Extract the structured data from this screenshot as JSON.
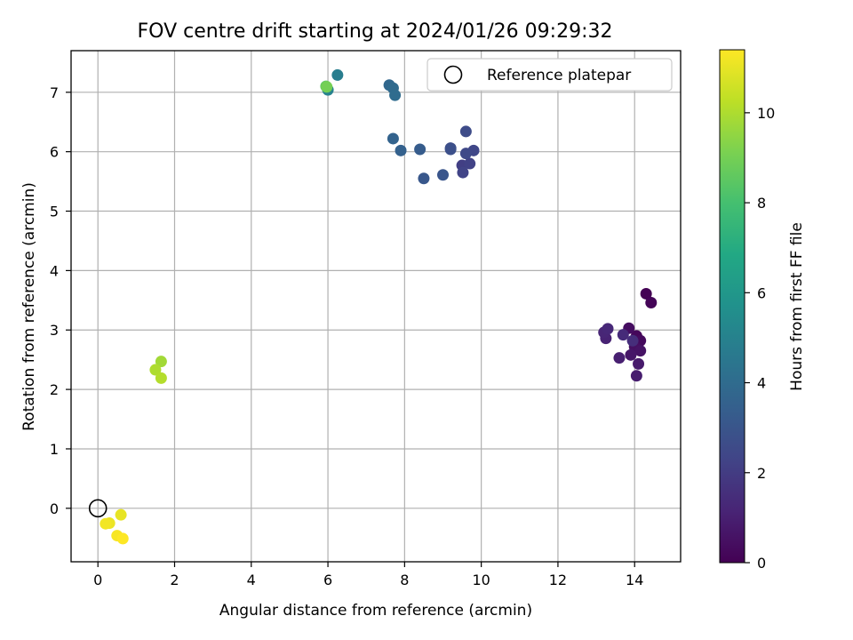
{
  "chart_data": {
    "type": "scatter",
    "title": "FOV centre drift starting at 2024/01/26 09:29:32",
    "xlabel": "Angular distance from reference (arcmin)",
    "ylabel": "Rotation from reference (arcmin)",
    "xlim": [
      -0.7,
      15.2
    ],
    "ylim": [
      -0.9,
      7.7
    ],
    "xticks": [
      0,
      2,
      4,
      6,
      8,
      10,
      12,
      14
    ],
    "yticks": [
      0,
      1,
      2,
      3,
      4,
      5,
      6,
      7
    ],
    "grid": true,
    "legend": {
      "placement": "top-right",
      "entries": [
        "Reference platepar"
      ]
    },
    "reference_point": {
      "x": 0,
      "y": 0
    },
    "colorbar": {
      "label": "Hours from first FF file",
      "range": [
        0,
        11.4
      ],
      "ticks": [
        0,
        2,
        4,
        6,
        8,
        10
      ],
      "colormap": "viridis"
    },
    "points": [
      {
        "x": 14.3,
        "y": 3.61,
        "h": 0.0
      },
      {
        "x": 14.43,
        "y": 3.46,
        "h": 0.1
      },
      {
        "x": 14.05,
        "y": 2.9,
        "h": 0.2
      },
      {
        "x": 14.15,
        "y": 2.82,
        "h": 0.3
      },
      {
        "x": 13.85,
        "y": 3.03,
        "h": 0.4
      },
      {
        "x": 14.0,
        "y": 2.72,
        "h": 0.5
      },
      {
        "x": 14.15,
        "y": 2.65,
        "h": 0.6
      },
      {
        "x": 13.9,
        "y": 2.58,
        "h": 0.7
      },
      {
        "x": 14.1,
        "y": 2.43,
        "h": 0.8
      },
      {
        "x": 14.05,
        "y": 2.23,
        "h": 0.9
      },
      {
        "x": 13.6,
        "y": 2.53,
        "h": 1.0
      },
      {
        "x": 13.25,
        "y": 2.86,
        "h": 1.1
      },
      {
        "x": 13.2,
        "y": 2.96,
        "h": 1.2
      },
      {
        "x": 13.3,
        "y": 3.02,
        "h": 1.3
      },
      {
        "x": 13.7,
        "y": 2.92,
        "h": 1.4
      },
      {
        "x": 13.95,
        "y": 2.82,
        "h": 1.5
      },
      {
        "x": 9.5,
        "y": 5.77,
        "h": 2.1
      },
      {
        "x": 9.7,
        "y": 5.8,
        "h": 2.2
      },
      {
        "x": 9.52,
        "y": 5.65,
        "h": 2.3
      },
      {
        "x": 9.8,
        "y": 6.02,
        "h": 2.4
      },
      {
        "x": 9.6,
        "y": 5.97,
        "h": 2.5
      },
      {
        "x": 9.6,
        "y": 6.34,
        "h": 2.6
      },
      {
        "x": 9.2,
        "y": 6.06,
        "h": 2.7
      },
      {
        "x": 9.2,
        "y": 6.04,
        "h": 2.8
      },
      {
        "x": 9.0,
        "y": 5.61,
        "h": 3.0
      },
      {
        "x": 8.5,
        "y": 5.55,
        "h": 3.1
      },
      {
        "x": 8.4,
        "y": 6.04,
        "h": 3.3
      },
      {
        "x": 7.9,
        "y": 6.02,
        "h": 3.5
      },
      {
        "x": 7.7,
        "y": 6.22,
        "h": 3.6
      },
      {
        "x": 7.6,
        "y": 7.12,
        "h": 3.8
      },
      {
        "x": 7.7,
        "y": 7.07,
        "h": 3.9
      },
      {
        "x": 7.75,
        "y": 6.95,
        "h": 4.0
      },
      {
        "x": 6.25,
        "y": 7.29,
        "h": 4.8
      },
      {
        "x": 6.0,
        "y": 7.04,
        "h": 5.0
      },
      {
        "x": 5.95,
        "y": 7.1,
        "h": 8.6
      },
      {
        "x": 5.97,
        "y": 7.09,
        "h": 9.0
      },
      {
        "x": 1.65,
        "y": 2.47,
        "h": 9.8
      },
      {
        "x": 1.5,
        "y": 2.33,
        "h": 10.0
      },
      {
        "x": 1.65,
        "y": 2.19,
        "h": 10.1
      },
      {
        "x": 0.6,
        "y": -0.11,
        "h": 11.0
      },
      {
        "x": 0.3,
        "y": -0.25,
        "h": 11.1
      },
      {
        "x": 0.2,
        "y": -0.26,
        "h": 11.2
      },
      {
        "x": 0.5,
        "y": -0.46,
        "h": 11.3
      },
      {
        "x": 0.65,
        "y": -0.51,
        "h": 11.4
      }
    ]
  }
}
